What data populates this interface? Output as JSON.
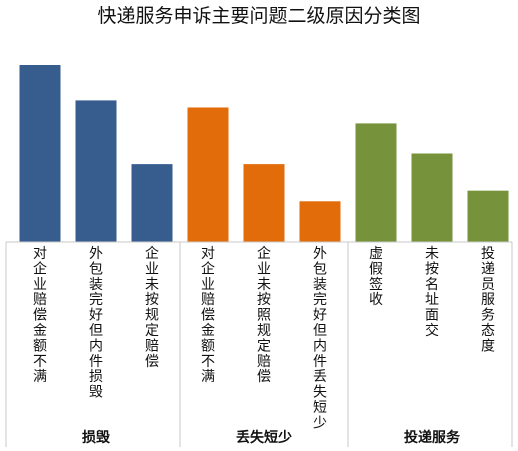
{
  "chart_data": {
    "type": "bar",
    "title": "快递服务申诉主要问题二级原因分类图",
    "groups": [
      {
        "name": "损毁",
        "color": "#375D8F",
        "categories": [
          "对企业赔偿金额不满",
          "外包装完好但内件损毁",
          "企业未按规定赔偿"
        ],
        "values": [
          100,
          80,
          44
        ]
      },
      {
        "name": "丢失短少",
        "color": "#E36C0A",
        "categories": [
          "对企业赔偿金额不满",
          "企业未按照规定赔偿",
          "外包装完好但内件丢失短少"
        ],
        "values": [
          76,
          44,
          23
        ]
      },
      {
        "name": "投递服务",
        "color": "#76933C",
        "categories": [
          "虚假签收",
          "未按名址面交",
          "投递员服务态度"
        ],
        "values": [
          67,
          50,
          29
        ]
      }
    ],
    "ylim": [
      0,
      100
    ],
    "xlabel": "",
    "ylabel": "",
    "grid": false,
    "legend": "none"
  }
}
